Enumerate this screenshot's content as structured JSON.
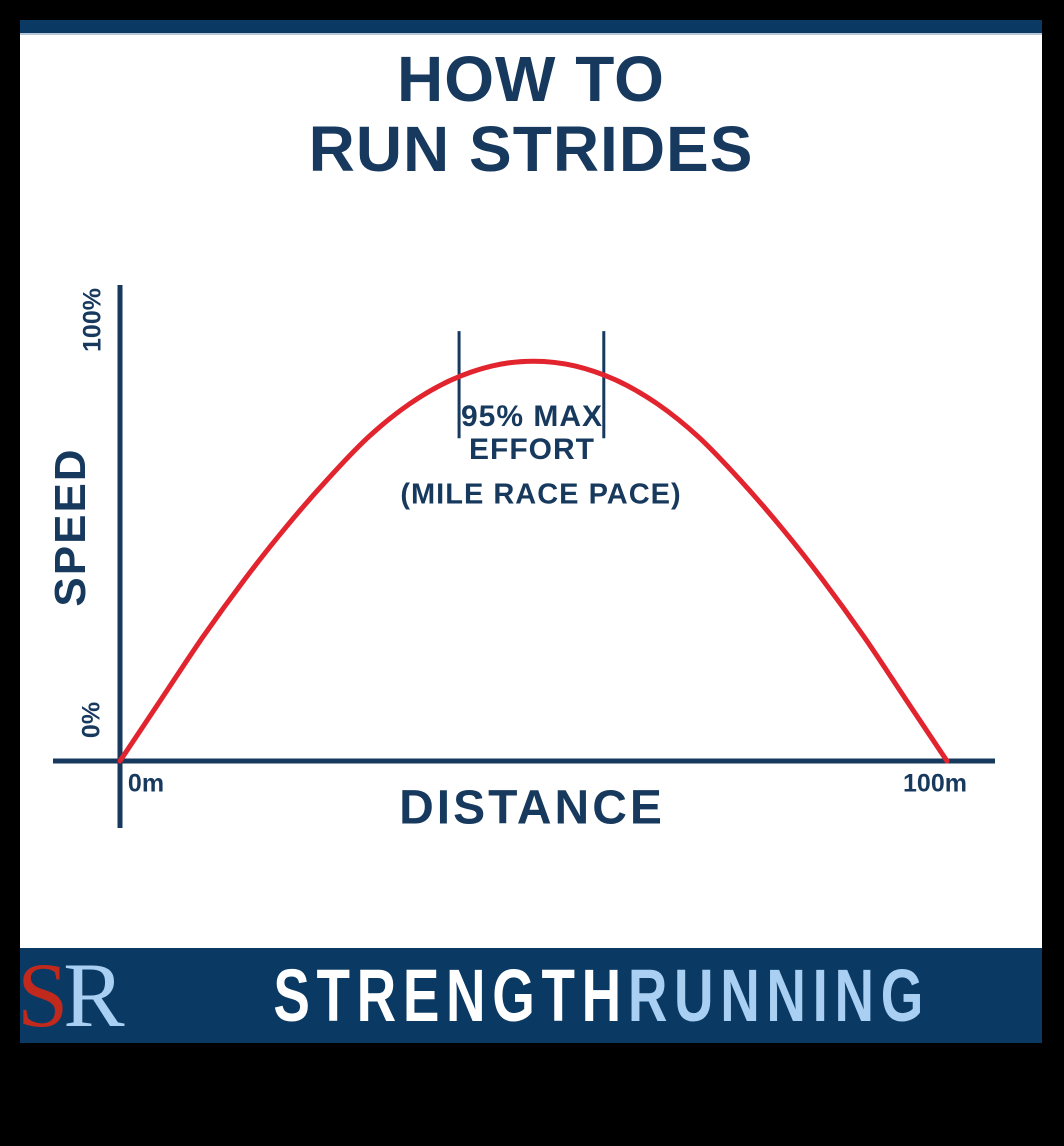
{
  "page": {
    "background": "#000000",
    "canvas_bg": "#ffffff",
    "bar_color": "#0a3a63",
    "accent_navy": "#17395e",
    "curve_red": "#e2242e",
    "light_blue": "#a9cff2",
    "logo_red": "#c2291d"
  },
  "header": {
    "line1": "HOW TO",
    "line2": "RUN STRIDES"
  },
  "chart_data": {
    "type": "line",
    "title": "HOW TO RUN STRIDES",
    "xlabel": "DISTANCE",
    "ylabel": "SPEED",
    "x_ticks": [
      "0m",
      "100m"
    ],
    "y_ticks": [
      "0%",
      "100%"
    ],
    "xlim": [
      0,
      100
    ],
    "ylim": [
      0,
      100
    ],
    "x_unit": "m",
    "y_unit": "% of max speed",
    "grid": false,
    "legend": false,
    "line_color": "#e2242e",
    "axis_color": "#17395e",
    "peak_speed_pct": 84,
    "points": [
      {
        "x": 0,
        "y": 0
      },
      {
        "x": 5,
        "y": 13
      },
      {
        "x": 10,
        "y": 26
      },
      {
        "x": 15,
        "y": 38
      },
      {
        "x": 20,
        "y": 49
      },
      {
        "x": 25,
        "y": 59
      },
      {
        "x": 30,
        "y": 68
      },
      {
        "x": 35,
        "y": 75
      },
      {
        "x": 40,
        "y": 80
      },
      {
        "x": 45,
        "y": 83
      },
      {
        "x": 50,
        "y": 84
      },
      {
        "x": 55,
        "y": 83
      },
      {
        "x": 60,
        "y": 80
      },
      {
        "x": 65,
        "y": 75
      },
      {
        "x": 70,
        "y": 68
      },
      {
        "x": 75,
        "y": 59
      },
      {
        "x": 80,
        "y": 49
      },
      {
        "x": 85,
        "y": 38
      },
      {
        "x": 90,
        "y": 26
      },
      {
        "x": 95,
        "y": 13
      },
      {
        "x": 100,
        "y": 0
      }
    ],
    "annotation": {
      "label_line1": "95% MAX",
      "label_line2": "EFFORT",
      "sublabel": "(MILE RACE PACE)",
      "ticks_m": [
        41,
        58.5
      ],
      "tick_top_pct": 90.3,
      "tick_bottom_pct": 67.8
    }
  },
  "footer": {
    "logo": {
      "s": "S",
      "r": "R"
    },
    "brand": {
      "part1": "STRENGTH",
      "part2": "RUNNING"
    }
  }
}
